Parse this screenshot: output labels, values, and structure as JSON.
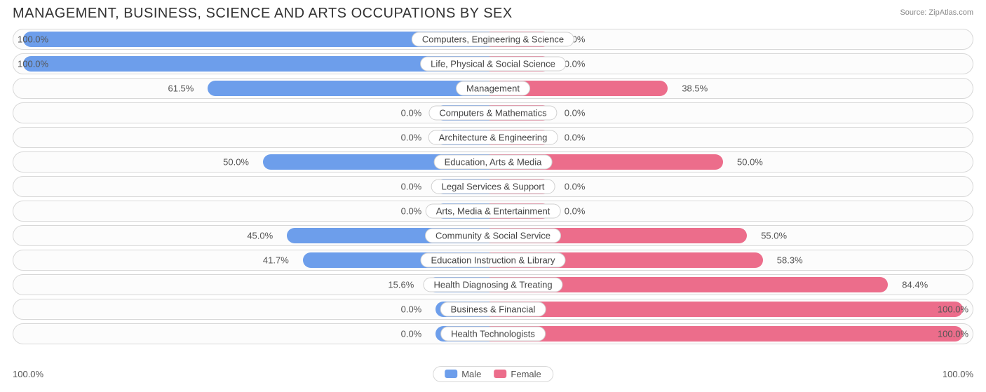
{
  "chart": {
    "title": "MANAGEMENT, BUSINESS, SCIENCE AND ARTS OCCUPATIONS BY SEX",
    "source_label": "Source: ZipAtlas.com",
    "type": "diverging-bar",
    "background_color": "#ffffff",
    "row_border_color": "#d8d8d8",
    "row_bg_color": "#fcfcfc",
    "title_color": "#333333",
    "title_fontsize": 20,
    "label_fontsize": 13,
    "label_color": "#444444",
    "pct_color": "#555555",
    "male_color": "#6d9eeb",
    "female_color": "#ec6d8b",
    "zero_bar_half_width_pct": 7,
    "axis": {
      "left_label": "100.0%",
      "right_label": "100.0%"
    },
    "legend": {
      "items": [
        {
          "label": "Male",
          "color": "#6d9eeb"
        },
        {
          "label": "Female",
          "color": "#ec6d8b"
        }
      ]
    },
    "categories": [
      {
        "label": "Computers, Engineering & Science",
        "male": 100.0,
        "female": 0.0
      },
      {
        "label": "Life, Physical & Social Science",
        "male": 100.0,
        "female": 0.0
      },
      {
        "label": "Management",
        "male": 61.5,
        "female": 38.5
      },
      {
        "label": "Computers & Mathematics",
        "male": 0.0,
        "female": 0.0
      },
      {
        "label": "Architecture & Engineering",
        "male": 0.0,
        "female": 0.0
      },
      {
        "label": "Education, Arts & Media",
        "male": 50.0,
        "female": 50.0
      },
      {
        "label": "Legal Services & Support",
        "male": 0.0,
        "female": 0.0
      },
      {
        "label": "Arts, Media & Entertainment",
        "male": 0.0,
        "female": 0.0
      },
      {
        "label": "Community & Social Service",
        "male": 45.0,
        "female": 55.0
      },
      {
        "label": "Education Instruction & Library",
        "male": 41.7,
        "female": 58.3
      },
      {
        "label": "Health Diagnosing & Treating",
        "male": 15.6,
        "female": 84.4
      },
      {
        "label": "Business & Financial",
        "male": 0.0,
        "female": 100.0
      },
      {
        "label": "Health Technologists",
        "male": 0.0,
        "female": 100.0
      }
    ]
  }
}
